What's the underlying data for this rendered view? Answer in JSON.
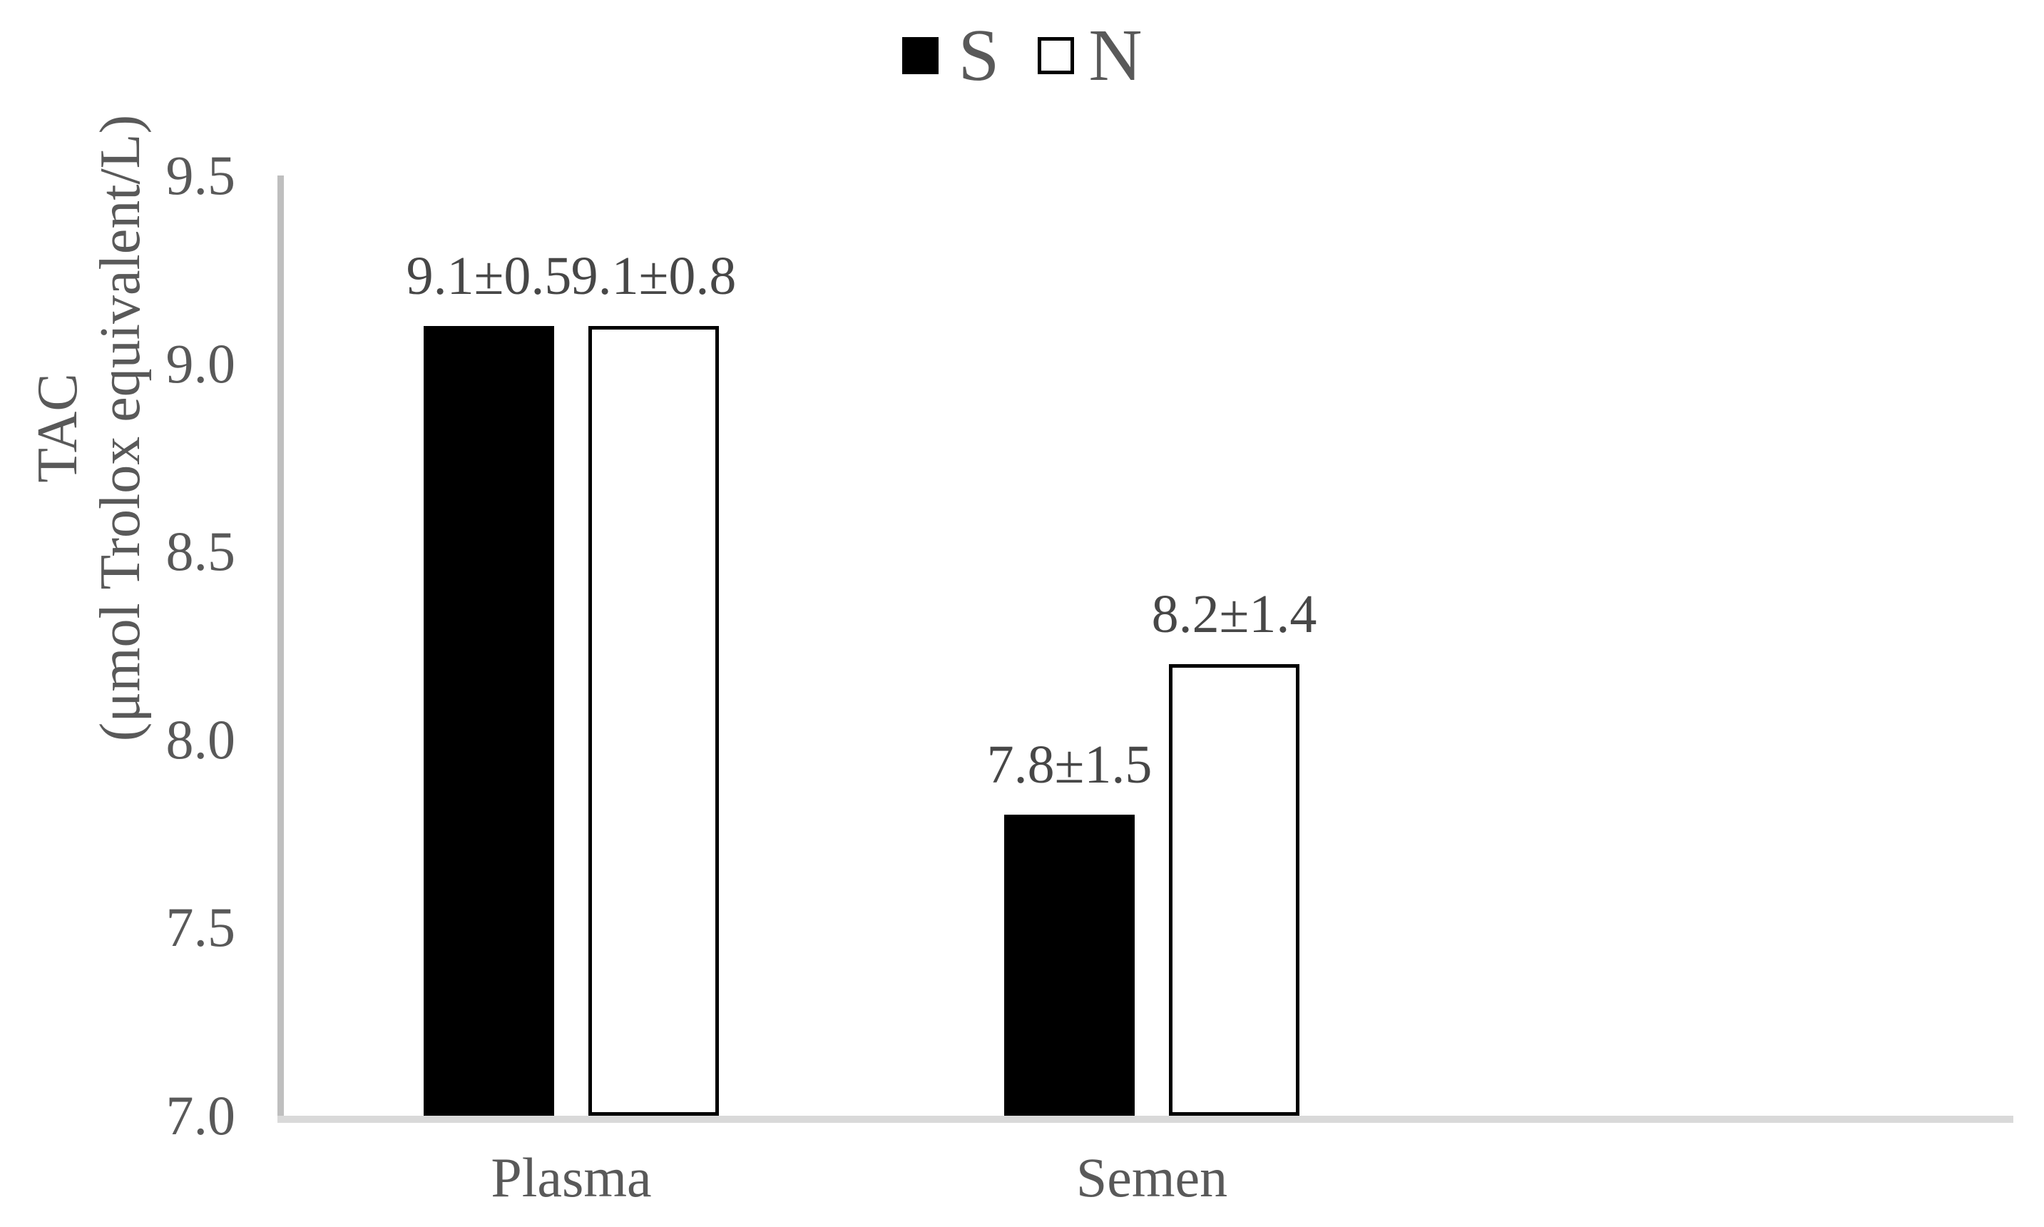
{
  "colors": {
    "text": "#595959",
    "data_label_text": "#474747",
    "y_axis_line": "#BFBFBF",
    "x_axis_line": "#D9D9D9",
    "series_s_fill": "#000000",
    "series_n_fill": "#FFFFFF",
    "series_n_border": "#000000"
  },
  "chart_data": {
    "type": "bar",
    "title": "",
    "categories": [
      "Plasma",
      "Semen"
    ],
    "series": [
      {
        "name": "S",
        "marker": "black-filled-square",
        "values": [
          9.1,
          7.8
        ],
        "data_labels": [
          "9.1±0.5",
          "7.8±1.5"
        ]
      },
      {
        "name": "N",
        "marker": "white-outlined-square",
        "values": [
          9.1,
          8.2
        ],
        "data_labels": [
          "9.1±0.8",
          "8.2±1.4"
        ]
      }
    ],
    "ylabel_lines": [
      "TAC",
      "(μmol Trolox equivalent/L)"
    ],
    "xlabel": "",
    "ylim": [
      7.0,
      9.5
    ],
    "ytick_step": 0.5,
    "yticks": [
      "9.5",
      "9.0",
      "8.5",
      "8.0",
      "7.5",
      "7.0"
    ],
    "grid": false,
    "legend_position": "top-center"
  }
}
